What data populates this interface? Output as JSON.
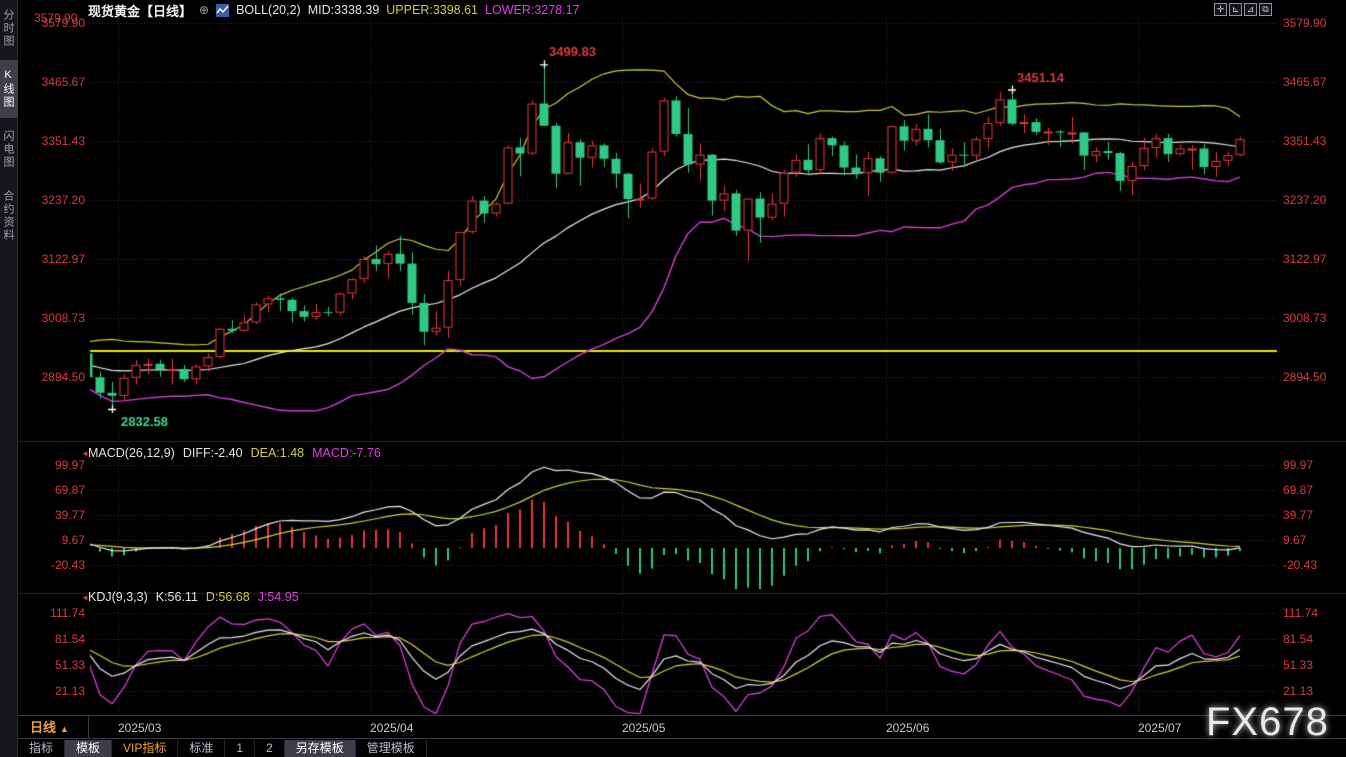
{
  "window": {
    "watermark": "FX678"
  },
  "sidebar": {
    "items": [
      {
        "label": "分时图",
        "selected": false
      },
      {
        "label": "K线图",
        "selected": true
      },
      {
        "label": "闪电图",
        "selected": false
      },
      {
        "label": "合约资料",
        "selected": false
      }
    ]
  },
  "header": {
    "title": "现货黄金【日线】",
    "expand_icon": "⊕",
    "boll_name": "BOLL(20,2)",
    "mid_label": "MID:3338.39",
    "upper_label": "UPPER:3398.61",
    "lower_label": "LOWER:3278.17",
    "corner_price": "3579.90"
  },
  "toolbar_icons": [
    {
      "name": "crosshair-icon",
      "glyph": "✛"
    },
    {
      "name": "axis-left-icon",
      "glyph": "⊾"
    },
    {
      "name": "axis-right-icon",
      "glyph": "⊿"
    },
    {
      "name": "pane-expand-icon",
      "glyph": "⧉"
    }
  ],
  "macd_header": {
    "name": "MACD(26,12,9)",
    "diff": "DIFF:-2.40",
    "dea": "DEA:1.48",
    "macd": "MACD:-7.76"
  },
  "kdj_header": {
    "name": "KDJ(9,3,3)",
    "k": "K:56.11",
    "d": "D:56.68",
    "j": "J:54.95"
  },
  "period": {
    "label": "日线",
    "arrow": "▲"
  },
  "bottom_tabs": [
    {
      "label": "指标",
      "selected": false,
      "accent": false
    },
    {
      "label": "模板",
      "selected": true,
      "accent": false
    },
    {
      "label": "VIP指标",
      "selected": false,
      "accent": true
    },
    {
      "label": "标准",
      "selected": false,
      "accent": false
    },
    {
      "label": "1",
      "selected": false,
      "accent": false
    },
    {
      "label": "2",
      "selected": false,
      "accent": false
    },
    {
      "label": "另存模板",
      "selected": true,
      "accent": false
    },
    {
      "label": "管理模板",
      "selected": false,
      "accent": false
    }
  ],
  "axes": {
    "price_labels": [
      "3579.90",
      "3465.67",
      "3351.43",
      "3237.20",
      "3122.97",
      "3008.73",
      "2894.50"
    ],
    "macd_labels": [
      "99.97",
      "69.87",
      "39.77",
      "9.67",
      "-20.43"
    ],
    "kdj_labels": [
      "111.74",
      "81.54",
      "51.33",
      "21.13"
    ],
    "x_labels": [
      {
        "text": "2025/03",
        "index": 11
      },
      {
        "text": "2025/04",
        "index": 32
      },
      {
        "text": "2025/05",
        "index": 53
      },
      {
        "text": "2025/06",
        "index": 75
      },
      {
        "text": "2025/07",
        "index": 96
      }
    ]
  },
  "annotations": [
    {
      "text": "3499.83",
      "index": 46,
      "price": 3499.83,
      "side": "above",
      "color": "#d73a3e"
    },
    {
      "text": "3451.14",
      "index": 85,
      "price": 3451.14,
      "side": "above",
      "color": "#d73a3e"
    },
    {
      "text": "2832.58",
      "index": 10,
      "price": 2832.58,
      "side": "below",
      "color": "#3bd68f"
    }
  ],
  "colors": {
    "up": "#e8393d",
    "down": "#2fc985",
    "boll_upper": "#cdc83e",
    "boll_mid": "#e8e8e8",
    "boll_lower": "#d33fd3",
    "alert": "#e9e900",
    "axis_label": "#d73a3e",
    "macd_diff": "#e8e8e8",
    "macd_dea": "#d3cc3f",
    "kdj_k": "#e8e8e8",
    "kdj_d": "#d3cc3f",
    "kdj_j": "#d33fd3",
    "grid": "#34343c",
    "accent_orange": "#efa33a"
  },
  "chart_data": {
    "type": "candlestick",
    "symbol": "现货黄金",
    "interval": "日线",
    "indicators": {
      "boll": {
        "period": 20,
        "mult": 2
      },
      "macd": {
        "fast": 12,
        "slow": 26,
        "signal": 9
      },
      "kdj": {
        "n": 9,
        "m1": 3,
        "m2": 3
      }
    },
    "price_axis": {
      "labels": [
        3579.9,
        3465.67,
        3351.43,
        3237.2,
        3122.97,
        3008.73,
        2894.5
      ],
      "alert_line": 2944.9
    },
    "macd_axis": [
      99.97,
      69.87,
      39.77,
      9.67,
      -20.43
    ],
    "kdj_axis": [
      111.74,
      81.54,
      51.33,
      21.13
    ],
    "warmup": 8,
    "candles": [
      [
        "2025/02/12",
        2900,
        2910,
        2864,
        2903
      ],
      [
        "2025/02/13",
        2903,
        2930,
        2895,
        2928
      ],
      [
        "2025/02/14",
        2928,
        2940,
        2877,
        2883
      ],
      [
        "2025/02/17",
        2883,
        2905,
        2878,
        2896
      ],
      [
        "2025/02/18",
        2896,
        2935,
        2890,
        2933
      ],
      [
        "2025/02/19",
        2933,
        2947,
        2915,
        2933
      ],
      [
        "2025/02/20",
        2933,
        2954,
        2925,
        2939
      ],
      [
        "2025/02/24",
        2939,
        2956,
        2920,
        2951
      ],
      [
        "2025/02/25",
        2940,
        2950,
        2885,
        2894
      ],
      [
        "2025/02/26",
        2894,
        2905,
        2853,
        2864
      ],
      [
        "2025/02/28",
        2864,
        2885,
        2832.58,
        2858
      ],
      [
        "2025/03/03",
        2858,
        2900,
        2850,
        2893
      ],
      [
        "2025/03/04",
        2893,
        2927,
        2880,
        2918
      ],
      [
        "2025/03/05",
        2918,
        2930,
        2900,
        2920
      ],
      [
        "2025/03/06",
        2920,
        2928,
        2895,
        2910
      ],
      [
        "2025/03/07",
        2910,
        2930,
        2880,
        2910
      ],
      [
        "2025/03/10",
        2910,
        2918,
        2885,
        2890
      ],
      [
        "2025/03/11",
        2890,
        2920,
        2880,
        2915
      ],
      [
        "2025/03/12",
        2915,
        2940,
        2905,
        2933
      ],
      [
        "2025/03/13",
        2933,
        2990,
        2930,
        2988
      ],
      [
        "2025/03/14",
        2988,
        3005,
        2980,
        2984
      ],
      [
        "2025/03/17",
        2984,
        3015,
        2982,
        3000
      ],
      [
        "2025/03/18",
        3000,
        3039,
        2997,
        3035
      ],
      [
        "2025/03/19",
        3035,
        3052,
        3020,
        3047
      ],
      [
        "2025/03/20",
        3047,
        3057,
        3022,
        3044
      ],
      [
        "2025/03/21",
        3044,
        3048,
        3000,
        3022
      ],
      [
        "2025/03/24",
        3022,
        3033,
        3002,
        3011
      ],
      [
        "2025/03/25",
        3011,
        3036,
        3005,
        3020
      ],
      [
        "2025/03/26",
        3020,
        3030,
        3012,
        3019
      ],
      [
        "2025/03/27",
        3019,
        3059,
        3013,
        3056
      ],
      [
        "2025/03/28",
        3056,
        3086,
        3045,
        3084
      ],
      [
        "2025/03/31",
        3084,
        3128,
        3076,
        3123
      ],
      [
        "2025/04/01",
        3123,
        3149,
        3100,
        3113
      ],
      [
        "2025/04/02",
        3113,
        3139,
        3086,
        3133
      ],
      [
        "2025/04/03",
        3133,
        3168,
        3100,
        3114
      ],
      [
        "2025/04/04",
        3114,
        3136,
        3015,
        3038
      ],
      [
        "2025/04/07",
        3038,
        3055,
        2956,
        2982
      ],
      [
        "2025/04/08",
        2982,
        3022,
        2975,
        2990
      ],
      [
        "2025/04/09",
        2990,
        3100,
        2970,
        3082
      ],
      [
        "2025/04/10",
        3082,
        3176,
        3071,
        3175
      ],
      [
        "2025/04/11",
        3175,
        3245,
        3172,
        3236
      ],
      [
        "2025/04/14",
        3236,
        3245,
        3193,
        3211
      ],
      [
        "2025/04/15",
        3211,
        3233,
        3205,
        3230
      ],
      [
        "2025/04/16",
        3230,
        3343,
        3229,
        3339
      ],
      [
        "2025/04/17",
        3339,
        3357,
        3283,
        3327
      ],
      [
        "2025/04/21",
        3327,
        3430,
        3324,
        3424
      ],
      [
        "2025/04/22",
        3424,
        3499.83,
        3380,
        3381
      ],
      [
        "2025/04/23",
        3381,
        3386,
        3260,
        3288
      ],
      [
        "2025/04/24",
        3288,
        3367,
        3287,
        3349
      ],
      [
        "2025/04/25",
        3349,
        3355,
        3265,
        3319
      ],
      [
        "2025/04/28",
        3319,
        3352,
        3300,
        3343
      ],
      [
        "2025/04/29",
        3343,
        3347,
        3301,
        3317
      ],
      [
        "2025/04/30",
        3317,
        3328,
        3260,
        3288
      ],
      [
        "2025/05/01",
        3288,
        3290,
        3202,
        3239
      ],
      [
        "2025/05/02",
        3239,
        3269,
        3222,
        3240
      ],
      [
        "2025/05/05",
        3240,
        3337,
        3237,
        3331
      ],
      [
        "2025/05/06",
        3331,
        3435,
        3322,
        3430
      ],
      [
        "2025/05/07",
        3430,
        3438,
        3360,
        3365
      ],
      [
        "2025/05/08",
        3365,
        3415,
        3290,
        3306
      ],
      [
        "2025/05/09",
        3306,
        3347,
        3275,
        3325
      ],
      [
        "2025/05/12",
        3325,
        3326,
        3207,
        3236
      ],
      [
        "2025/05/13",
        3236,
        3265,
        3215,
        3250
      ],
      [
        "2025/05/14",
        3250,
        3257,
        3168,
        3178
      ],
      [
        "2025/05/15",
        3178,
        3240,
        3120,
        3240
      ],
      [
        "2025/05/16",
        3240,
        3252,
        3154,
        3203
      ],
      [
        "2025/05/19",
        3203,
        3250,
        3198,
        3230
      ],
      [
        "2025/05/20",
        3230,
        3295,
        3205,
        3290
      ],
      [
        "2025/05/21",
        3290,
        3325,
        3282,
        3315
      ],
      [
        "2025/05/22",
        3315,
        3345,
        3285,
        3295
      ],
      [
        "2025/05/23",
        3295,
        3366,
        3287,
        3357
      ],
      [
        "2025/05/26",
        3357,
        3360,
        3323,
        3343
      ],
      [
        "2025/05/27",
        3343,
        3350,
        3285,
        3300
      ],
      [
        "2025/05/28",
        3300,
        3325,
        3278,
        3289
      ],
      [
        "2025/05/29",
        3289,
        3330,
        3245,
        3318
      ],
      [
        "2025/05/30",
        3318,
        3322,
        3272,
        3290
      ],
      [
        "2025/06/02",
        3290,
        3382,
        3288,
        3380
      ],
      [
        "2025/06/03",
        3380,
        3392,
        3333,
        3352
      ],
      [
        "2025/06/04",
        3352,
        3384,
        3343,
        3375
      ],
      [
        "2025/06/05",
        3375,
        3403,
        3339,
        3353
      ],
      [
        "2025/06/06",
        3353,
        3375,
        3307,
        3310
      ],
      [
        "2025/06/09",
        3310,
        3337,
        3293,
        3325
      ],
      [
        "2025/06/10",
        3325,
        3349,
        3301,
        3323
      ],
      [
        "2025/06/11",
        3323,
        3360,
        3313,
        3355
      ],
      [
        "2025/06/12",
        3355,
        3398,
        3337,
        3386
      ],
      [
        "2025/06/13",
        3386,
        3446,
        3380,
        3432
      ],
      [
        "2025/06/16",
        3432,
        3451.14,
        3381,
        3385
      ],
      [
        "2025/06/17",
        3385,
        3403,
        3366,
        3388
      ],
      [
        "2025/06/18",
        3388,
        3396,
        3363,
        3369
      ],
      [
        "2025/06/19",
        3369,
        3377,
        3344,
        3370
      ],
      [
        "2025/06/20",
        3370,
        3373,
        3340,
        3368
      ],
      [
        "2025/06/23",
        3368,
        3398,
        3347,
        3368
      ],
      [
        "2025/06/24",
        3368,
        3369,
        3295,
        3323
      ],
      [
        "2025/06/25",
        3323,
        3339,
        3310,
        3332
      ],
      [
        "2025/06/26",
        3332,
        3350,
        3315,
        3328
      ],
      [
        "2025/06/27",
        3328,
        3330,
        3255,
        3274
      ],
      [
        "2025/06/30",
        3274,
        3311,
        3246,
        3303
      ],
      [
        "2025/07/01",
        3303,
        3358,
        3295,
        3338
      ],
      [
        "2025/07/02",
        3338,
        3365,
        3320,
        3357
      ],
      [
        "2025/07/03",
        3357,
        3365,
        3311,
        3326
      ],
      [
        "2025/07/04",
        3326,
        3345,
        3323,
        3337
      ],
      [
        "2025/07/07",
        3337,
        3343,
        3296,
        3337
      ],
      [
        "2025/07/08",
        3337,
        3345,
        3287,
        3301
      ],
      [
        "2025/07/09",
        3301,
        3330,
        3282,
        3313
      ],
      [
        "2025/07/10",
        3313,
        3331,
        3303,
        3324
      ],
      [
        "2025/07/11",
        3324,
        3360,
        3322,
        3355
      ]
    ]
  }
}
